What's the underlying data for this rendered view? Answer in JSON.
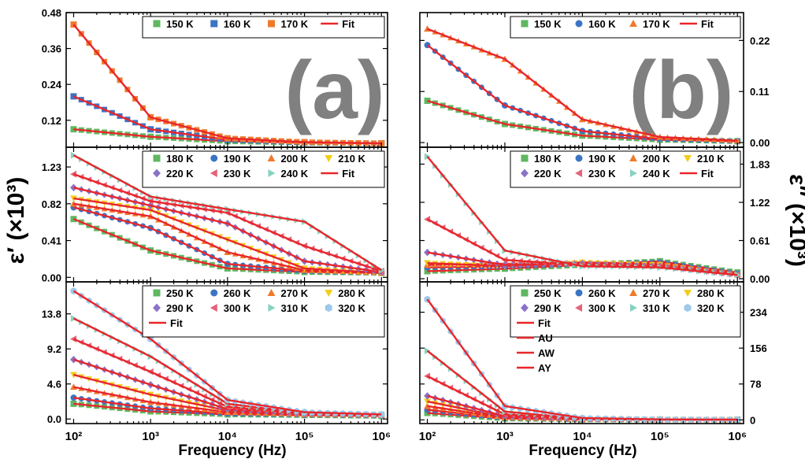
{
  "figure": {
    "left_ylabel": "ε′ (×10³)",
    "right_ylabel": "ε″ (×10³)",
    "xlabel": "Frequency (Hz)",
    "panel_letters": [
      "(a)",
      "(b)"
    ],
    "xtick_labels": [
      "10²",
      "10³",
      "10⁴",
      "10⁵",
      "10⁶"
    ]
  },
  "colors": {
    "fit": "#e8262b",
    "150 K": "#5fb760",
    "160 K": "#3c74c4",
    "170 K": "#f07a2c",
    "180 K": "#5fb760",
    "190 K": "#3c74c4",
    "200 K": "#f07a2c",
    "210 K": "#f2cc19",
    "220 K": "#8a72c6",
    "230 K": "#e3637a",
    "240 K": "#88d2c0",
    "250 K": "#5fb760",
    "260 K": "#3c74c4",
    "270 K": "#f07a2c",
    "280 K": "#f2cc19",
    "290 K": "#8a72c6",
    "300 K": "#e3637a",
    "310 K": "#88d2c0",
    "320 K": "#9cc9ec"
  },
  "chart_data": [
    {
      "id": "a-top",
      "type": "scatter",
      "column": "real",
      "xscale": "log",
      "xlim": [
        80,
        1200000
      ],
      "ylim": [
        0.03,
        0.48
      ],
      "yticks": [
        0.12,
        0.24,
        0.36,
        0.48
      ],
      "ytick_labels": [
        "0.12",
        "0.24",
        "0.36",
        "0.48"
      ],
      "ytick_side": "left",
      "legend": [
        "150 K",
        "160 K",
        "170 K",
        "Fit"
      ],
      "legend_cols": 4,
      "legend_width": 307,
      "series": [
        {
          "name": "150 K",
          "marker": "square",
          "x": [
            100,
            1000,
            10000,
            100000,
            1000000
          ],
          "y": [
            0.09,
            0.065,
            0.05,
            0.045,
            0.043
          ]
        },
        {
          "name": "160 K",
          "marker": "square",
          "x": [
            100,
            1000,
            10000,
            100000,
            1000000
          ],
          "y": [
            0.2,
            0.09,
            0.055,
            0.046,
            0.043
          ]
        },
        {
          "name": "170 K",
          "marker": "square",
          "x": [
            100,
            1000,
            10000,
            100000,
            1000000
          ],
          "y": [
            0.44,
            0.13,
            0.06,
            0.047,
            0.043
          ]
        }
      ]
    },
    {
      "id": "a-mid",
      "type": "scatter",
      "column": "real",
      "xscale": "log",
      "xlim": [
        80,
        1200000
      ],
      "ylim": [
        -0.05,
        1.45
      ],
      "yticks": [
        0,
        0.41,
        0.82,
        1.23
      ],
      "ytick_labels": [
        "0.00",
        "0.41",
        "0.82",
        "1.23"
      ],
      "ytick_side": "left",
      "legend": [
        "180 K",
        "190 K",
        "200 K",
        "210 K",
        "220 K",
        "230 K",
        "240 K",
        "Fit"
      ],
      "legend_cols": 4,
      "legend_width": 307,
      "series": [
        {
          "name": "180 K",
          "marker": "square",
          "x": [
            100,
            1000,
            10000,
            100000,
            1000000
          ],
          "y": [
            0.65,
            0.3,
            0.1,
            0.06,
            0.05
          ]
        },
        {
          "name": "190 K",
          "marker": "circle",
          "x": [
            100,
            1000,
            10000,
            100000,
            1000000
          ],
          "y": [
            0.78,
            0.55,
            0.15,
            0.07,
            0.05
          ]
        },
        {
          "name": "200 K",
          "marker": "triangle-up",
          "x": [
            100,
            1000,
            10000,
            100000,
            1000000
          ],
          "y": [
            0.82,
            0.68,
            0.28,
            0.08,
            0.05
          ]
        },
        {
          "name": "210 K",
          "marker": "triangle-down",
          "x": [
            100,
            1000,
            10000,
            100000,
            1000000
          ],
          "y": [
            0.88,
            0.75,
            0.42,
            0.1,
            0.05
          ]
        },
        {
          "name": "220 K",
          "marker": "diamond",
          "x": [
            100,
            1000,
            10000,
            100000,
            1000000
          ],
          "y": [
            1.0,
            0.8,
            0.6,
            0.18,
            0.06
          ]
        },
        {
          "name": "230 K",
          "marker": "triangle-left",
          "x": [
            100,
            1000,
            10000,
            100000,
            1000000
          ],
          "y": [
            1.15,
            0.85,
            0.72,
            0.35,
            0.07
          ]
        },
        {
          "name": "240 K",
          "marker": "triangle-right",
          "x": [
            100,
            1000,
            10000,
            100000,
            1000000
          ],
          "y": [
            1.36,
            0.9,
            0.76,
            0.62,
            0.08
          ]
        }
      ]
    },
    {
      "id": "a-bot",
      "type": "scatter",
      "column": "real",
      "xscale": "log",
      "xlim": [
        80,
        1200000
      ],
      "ylim": [
        -0.6,
        18.0
      ],
      "yticks": [
        0,
        4.6,
        9.2,
        13.8
      ],
      "ytick_labels": [
        "0.0",
        "4.6",
        "9.2",
        "13.8"
      ],
      "ytick_side": "left",
      "legend": [
        "250 K",
        "260 K",
        "270 K",
        "280 K",
        "290 K",
        "300 K",
        "310 K",
        "320 K",
        "Fit"
      ],
      "legend_cols": 4,
      "legend_width": 307,
      "series": [
        {
          "name": "250 K",
          "marker": "square",
          "x": [
            100,
            1000,
            10000,
            100000,
            1000000
          ],
          "y": [
            2.0,
            1.0,
            0.6,
            0.5,
            0.4
          ]
        },
        {
          "name": "260 K",
          "marker": "circle",
          "x": [
            100,
            1000,
            10000,
            100000,
            1000000
          ],
          "y": [
            2.8,
            1.4,
            0.7,
            0.55,
            0.45
          ]
        },
        {
          "name": "270 K",
          "marker": "triangle-up",
          "x": [
            100,
            1000,
            10000,
            100000,
            1000000
          ],
          "y": [
            4.2,
            2.2,
            0.9,
            0.6,
            0.5
          ]
        },
        {
          "name": "280 K",
          "marker": "triangle-down",
          "x": [
            100,
            1000,
            10000,
            100000,
            1000000
          ],
          "y": [
            5.8,
            3.2,
            1.1,
            0.65,
            0.5
          ]
        },
        {
          "name": "290 K",
          "marker": "diamond",
          "x": [
            100,
            1000,
            10000,
            100000,
            1000000
          ],
          "y": [
            7.8,
            4.5,
            1.3,
            0.7,
            0.55
          ]
        },
        {
          "name": "300 K",
          "marker": "triangle-left",
          "x": [
            100,
            1000,
            10000,
            100000,
            1000000
          ],
          "y": [
            10.5,
            6.2,
            1.6,
            0.75,
            0.55
          ]
        },
        {
          "name": "310 K",
          "marker": "triangle-right",
          "x": [
            100,
            1000,
            10000,
            100000,
            1000000
          ],
          "y": [
            13.2,
            8.2,
            2.0,
            0.8,
            0.6
          ]
        },
        {
          "name": "320 K",
          "marker": "hexagon",
          "x": [
            100,
            1000,
            10000,
            100000,
            1000000
          ],
          "y": [
            16.8,
            10.5,
            2.5,
            0.9,
            0.6
          ]
        }
      ]
    },
    {
      "id": "b-top",
      "type": "scatter",
      "column": "imag",
      "xscale": "log",
      "xlim": [
        80,
        1200000
      ],
      "ylim": [
        -0.01,
        0.28
      ],
      "yticks": [
        0,
        0.11,
        0.22
      ],
      "ytick_labels": [
        "0.00",
        "0.11",
        "0.22"
      ],
      "ytick_side": "right",
      "legend": [
        "150 K",
        "160 K",
        "170 K",
        "Fit"
      ],
      "legend_cols": 4,
      "legend_width": 292,
      "series": [
        {
          "name": "150 K",
          "marker": "square",
          "x": [
            100,
            1000,
            10000,
            100000,
            1000000
          ],
          "y": [
            0.09,
            0.04,
            0.015,
            0.006,
            0.003
          ]
        },
        {
          "name": "160 K",
          "marker": "circle",
          "x": [
            100,
            1000,
            10000,
            100000,
            1000000
          ],
          "y": [
            0.21,
            0.08,
            0.025,
            0.008,
            0.003
          ]
        },
        {
          "name": "170 K",
          "marker": "triangle-up",
          "x": [
            100,
            1000,
            10000,
            100000,
            1000000
          ],
          "y": [
            0.245,
            0.18,
            0.05,
            0.012,
            0.004
          ]
        }
      ]
    },
    {
      "id": "b-mid",
      "type": "scatter",
      "column": "imag",
      "xscale": "log",
      "xlim": [
        80,
        1200000
      ],
      "ylim": [
        -0.05,
        2.1
      ],
      "yticks": [
        0,
        0.61,
        1.22,
        1.83
      ],
      "ytick_labels": [
        "0.00",
        "0.61",
        "1.22",
        "1.83"
      ],
      "ytick_side": "right",
      "legend": [
        "180 K",
        "190 K",
        "200 K",
        "210 K",
        "220 K",
        "230 K",
        "240 K",
        "Fit"
      ],
      "legend_cols": 4,
      "legend_width": 292,
      "series": [
        {
          "name": "180 K",
          "marker": "square",
          "x": [
            100,
            1000,
            10000,
            100000,
            1000000
          ],
          "y": [
            0.12,
            0.16,
            0.22,
            0.28,
            0.1
          ]
        },
        {
          "name": "190 K",
          "marker": "circle",
          "x": [
            100,
            1000,
            10000,
            100000,
            1000000
          ],
          "y": [
            0.18,
            0.2,
            0.24,
            0.26,
            0.08
          ]
        },
        {
          "name": "200 K",
          "marker": "triangle-up",
          "x": [
            100,
            1000,
            10000,
            100000,
            1000000
          ],
          "y": [
            0.22,
            0.24,
            0.26,
            0.24,
            0.07
          ]
        },
        {
          "name": "210 K",
          "marker": "triangle-down",
          "x": [
            100,
            1000,
            10000,
            100000,
            1000000
          ],
          "y": [
            0.25,
            0.2,
            0.26,
            0.22,
            0.06
          ]
        },
        {
          "name": "220 K",
          "marker": "diamond",
          "x": [
            100,
            1000,
            10000,
            100000,
            1000000
          ],
          "y": [
            0.42,
            0.22,
            0.24,
            0.2,
            0.06
          ]
        },
        {
          "name": "230 K",
          "marker": "triangle-left",
          "x": [
            100,
            1000,
            10000,
            100000,
            1000000
          ],
          "y": [
            0.95,
            0.3,
            0.22,
            0.2,
            0.06
          ]
        },
        {
          "name": "240 K",
          "marker": "triangle-right",
          "x": [
            100,
            1000,
            10000,
            100000,
            1000000
          ],
          "y": [
            1.95,
            0.45,
            0.2,
            0.18,
            0.06
          ]
        }
      ]
    },
    {
      "id": "b-bot",
      "type": "scatter",
      "column": "imag",
      "xscale": "log",
      "xlim": [
        80,
        1200000
      ],
      "ylim": [
        -8,
        300
      ],
      "yticks": [
        0,
        78,
        156,
        234
      ],
      "ytick_labels": [
        "0",
        "78",
        "156",
        "234"
      ],
      "ytick_side": "right",
      "legend": [
        "250 K",
        "260 K",
        "270 K",
        "280 K",
        "290 K",
        "300 K",
        "310 K",
        "320 K",
        "Fit",
        "AU",
        "AW",
        "AY"
      ],
      "legend_cols": 4,
      "legend_width": 292,
      "series": [
        {
          "name": "250 K",
          "marker": "square",
          "x": [
            100,
            1000,
            10000,
            100000,
            1000000
          ],
          "y": [
            15,
            3,
            1,
            0.5,
            0.3
          ]
        },
        {
          "name": "260 K",
          "marker": "circle",
          "x": [
            100,
            1000,
            10000,
            100000,
            1000000
          ],
          "y": [
            22,
            4,
            1.2,
            0.5,
            0.3
          ]
        },
        {
          "name": "270 K",
          "marker": "triangle-up",
          "x": [
            100,
            1000,
            10000,
            100000,
            1000000
          ],
          "y": [
            30,
            5,
            1.4,
            0.6,
            0.3
          ]
        },
        {
          "name": "280 K",
          "marker": "triangle-down",
          "x": [
            100,
            1000,
            10000,
            100000,
            1000000
          ],
          "y": [
            40,
            6,
            1.6,
            0.6,
            0.3
          ]
        },
        {
          "name": "290 K",
          "marker": "diamond",
          "x": [
            100,
            1000,
            10000,
            100000,
            1000000
          ],
          "y": [
            52,
            8,
            1.8,
            0.7,
            0.3
          ]
        },
        {
          "name": "300 K",
          "marker": "triangle-left",
          "x": [
            100,
            1000,
            10000,
            100000,
            1000000
          ],
          "y": [
            95,
            12,
            2.2,
            0.8,
            0.4
          ]
        },
        {
          "name": "310 K",
          "marker": "triangle-right",
          "x": [
            100,
            1000,
            10000,
            100000,
            1000000
          ],
          "y": [
            150,
            18,
            2.8,
            0.9,
            0.4
          ]
        },
        {
          "name": "320 K",
          "marker": "hexagon",
          "x": [
            100,
            1000,
            10000,
            100000,
            1000000
          ],
          "y": [
            262,
            30,
            4,
            1.1,
            0.5
          ]
        }
      ]
    }
  ]
}
